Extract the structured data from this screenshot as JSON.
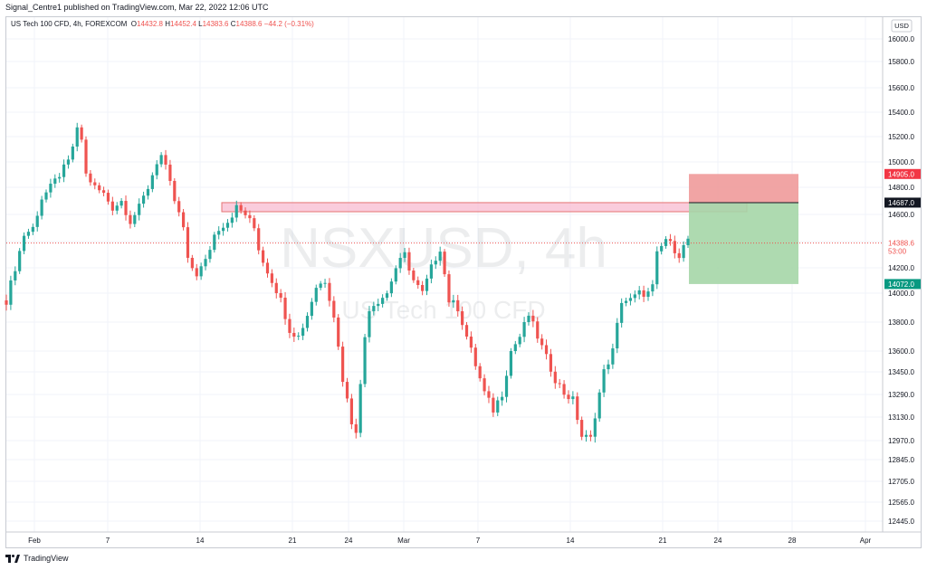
{
  "header": {
    "published_text": "Signal_Centre1 published on TradingView.com, Mar 22, 2022 12:06 UTC"
  },
  "legend": {
    "symbol": "US Tech 100 CFD, 4h, FOREXCOM",
    "o_label": "O",
    "o": "14432.8",
    "h_label": "H",
    "h": "14452.4",
    "l_label": "L",
    "l": "14383.6",
    "c_label": "C",
    "c": "14388.6",
    "change": "−44.2 (−0.31%)"
  },
  "watermark": {
    "ticker": "NSXUSD, 4h",
    "name": "US Tech 100 CFD"
  },
  "currency_button": "USD",
  "footer": {
    "brand": "TradingView"
  },
  "colors": {
    "up": "#26a69a",
    "down": "#ef5350",
    "zone": "#f8bbd0",
    "stop": "#ef9a9a",
    "target": "#a5d6a7",
    "price_line": "#ef5350"
  },
  "chart_data": {
    "type": "candlestick",
    "x_axis_labels": [
      "Feb",
      "7",
      "14",
      "21",
      "24",
      "Mar",
      "7",
      "14",
      "21",
      "24",
      "28",
      "Apr"
    ],
    "y_axis_labels": [
      "16000.0",
      "15800.0",
      "15600.0",
      "15400.0",
      "15200.0",
      "15000.0",
      "14800.0",
      "14600.0",
      "14400.0",
      "14200.0",
      "14000.0",
      "13800.0",
      "13600.0",
      "13450.0",
      "13290.0",
      "13130.0",
      "12970.0",
      "12845.0",
      "12705.0",
      "12565.0",
      "12445.0"
    ],
    "last_price": {
      "value": "14388.6",
      "countdown": "53:00"
    },
    "position": {
      "stop": "14905.0",
      "entry": "14687.0",
      "target": "14072.0"
    },
    "resistance_zone": [
      14620,
      14687
    ],
    "close_path": [
      [
        0,
        13950
      ],
      [
        2,
        14200
      ],
      [
        4,
        14450
      ],
      [
        6,
        14500
      ],
      [
        8,
        14720
      ],
      [
        10,
        14800
      ],
      [
        12,
        14900
      ],
      [
        14,
        15000
      ],
      [
        16,
        15250
      ],
      [
        17,
        15180
      ],
      [
        18,
        14900
      ],
      [
        20,
        14800
      ],
      [
        22,
        14750
      ],
      [
        24,
        14650
      ],
      [
        26,
        14700
      ],
      [
        28,
        14550
      ],
      [
        30,
        14650
      ],
      [
        32,
        14800
      ],
      [
        34,
        15000
      ],
      [
        35,
        15050
      ],
      [
        36,
        14950
      ],
      [
        38,
        14700
      ],
      [
        40,
        14500
      ],
      [
        41,
        14250
      ],
      [
        43,
        14150
      ],
      [
        45,
        14250
      ],
      [
        47,
        14450
      ],
      [
        48,
        14500
      ],
      [
        50,
        14550
      ],
      [
        52,
        14650
      ],
      [
        54,
        14600
      ],
      [
        56,
        14500
      ],
      [
        57,
        14350
      ],
      [
        58,
        14250
      ],
      [
        60,
        14100
      ],
      [
        62,
        13950
      ],
      [
        64,
        13750
      ],
      [
        66,
        13700
      ],
      [
        68,
        13850
      ],
      [
        70,
        14050
      ],
      [
        72,
        14100
      ],
      [
        74,
        13850
      ],
      [
        76,
        13400
      ],
      [
        78,
        13100
      ],
      [
        79,
        13050
      ],
      [
        80,
        13350
      ],
      [
        81,
        13700
      ],
      [
        82,
        13900
      ],
      [
        84,
        13950
      ],
      [
        86,
        14000
      ],
      [
        88,
        14200
      ],
      [
        90,
        14300
      ],
      [
        92,
        14100
      ],
      [
        94,
        14000
      ],
      [
        96,
        14200
      ],
      [
        98,
        14350
      ],
      [
        99,
        14150
      ],
      [
        100,
        13950
      ],
      [
        102,
        13900
      ],
      [
        104,
        13700
      ],
      [
        106,
        13500
      ],
      [
        108,
        13300
      ],
      [
        110,
        13180
      ],
      [
        112,
        13300
      ],
      [
        114,
        13600
      ],
      [
        116,
        13700
      ],
      [
        118,
        13850
      ],
      [
        120,
        13700
      ],
      [
        122,
        13550
      ],
      [
        124,
        13400
      ],
      [
        126,
        13300
      ],
      [
        128,
        13250
      ],
      [
        130,
        13000
      ],
      [
        132,
        12980
      ],
      [
        133,
        13150
      ],
      [
        135,
        13450
      ],
      [
        137,
        13600
      ],
      [
        139,
        13950
      ],
      [
        141,
        13950
      ],
      [
        143,
        14000
      ],
      [
        145,
        14000
      ],
      [
        146,
        14050
      ],
      [
        147,
        14300
      ],
      [
        149,
        14420
      ],
      [
        150,
        14380
      ],
      [
        152,
        14300
      ],
      [
        154,
        14420
      ]
    ]
  }
}
